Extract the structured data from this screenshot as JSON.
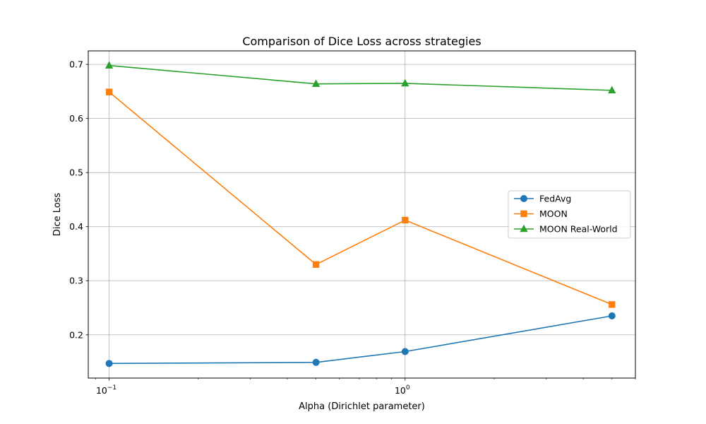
{
  "chart_data": {
    "type": "line",
    "title": "Comparison of Dice Loss across strategies",
    "xlabel": "Alpha (Dirichlet parameter)",
    "ylabel": "Dice Loss",
    "x_scale": "log",
    "x": [
      0.1,
      0.5,
      1.0,
      5.0
    ],
    "x_tick_labels": [
      {
        "value": 0.1,
        "base": "10",
        "exp": "−1"
      },
      {
        "value": 1.0,
        "base": "10",
        "exp": "0"
      }
    ],
    "y_ticks": [
      0.2,
      0.3,
      0.4,
      0.5,
      0.6,
      0.7
    ],
    "y_tick_labels": [
      "0.2",
      "0.3",
      "0.4",
      "0.5",
      "0.6",
      "0.7"
    ],
    "xlim": [
      0.085,
      6.0
    ],
    "ylim": [
      0.12,
      0.725
    ],
    "grid": true,
    "legend_position": "center-right",
    "series": [
      {
        "name": "FedAvg",
        "color": "#1f77b4",
        "marker": "circle",
        "values": [
          0.147,
          0.149,
          0.169,
          0.235
        ]
      },
      {
        "name": "MOON",
        "color": "#ff7f0e",
        "marker": "square",
        "values": [
          0.649,
          0.33,
          0.412,
          0.256
        ]
      },
      {
        "name": "MOON Real-World",
        "color": "#2ca02c",
        "marker": "triangle",
        "values": [
          0.698,
          0.664,
          0.665,
          0.652
        ]
      }
    ]
  }
}
